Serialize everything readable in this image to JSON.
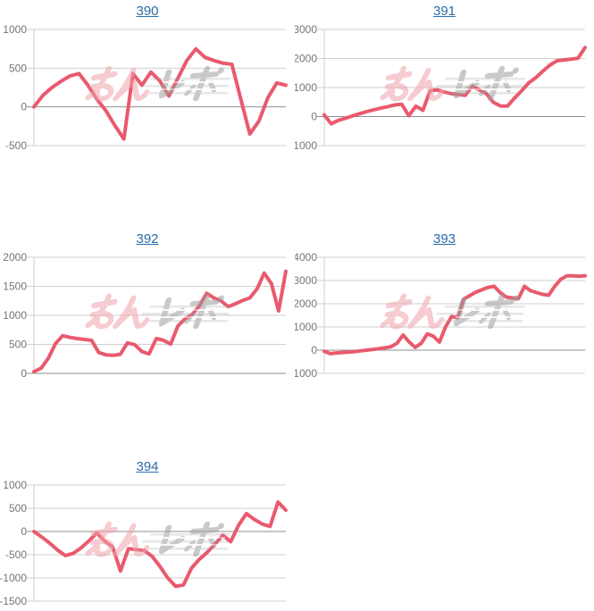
{
  "page": {
    "background": "#ffffff"
  },
  "watermark": {
    "text": "みんレポ",
    "pink_color": "#f0a4ad",
    "gray_color": "#9e9e9e"
  },
  "styles": {
    "line_color": "#e95a6e",
    "grid_color": "#cfcfcf",
    "zero_line_color": "#8f8f8f",
    "axis_label_color": "#757575",
    "title_color": "#2a6da8"
  },
  "chart_data": [
    {
      "type": "line",
      "title": "390",
      "xlabel": "",
      "ylabel": "",
      "ylim": [
        -500,
        1000
      ],
      "yticks": [
        1000,
        500,
        0,
        -500
      ],
      "grid": true,
      "legend": false,
      "values": [
        0,
        150,
        250,
        330,
        400,
        430,
        280,
        100,
        -50,
        -240,
        -415,
        430,
        280,
        450,
        335,
        140,
        370,
        600,
        750,
        640,
        600,
        565,
        550,
        100,
        -350,
        -185,
        120,
        310,
        280
      ]
    },
    {
      "type": "line",
      "title": "391",
      "xlabel": "",
      "ylabel": "",
      "ylim": [
        -1000,
        3000
      ],
      "yticks": [
        3000,
        2000,
        1000,
        0,
        -1000
      ],
      "grid": true,
      "legend": false,
      "values": [
        60,
        -250,
        -130,
        -60,
        20,
        100,
        170,
        230,
        290,
        340,
        400,
        420,
        30,
        360,
        215,
        890,
        920,
        850,
        790,
        760,
        730,
        1040,
        920,
        790,
        490,
        365,
        360,
        640,
        890,
        1160,
        1340,
        1560,
        1770,
        1920,
        1950,
        1980,
        2010,
        2380
      ]
    },
    {
      "type": "line",
      "title": "392",
      "xlabel": "",
      "ylabel": "",
      "ylim": [
        0,
        2000
      ],
      "yticks": [
        2000,
        1500,
        1000,
        500,
        0
      ],
      "grid": true,
      "legend": false,
      "values": [
        30,
        90,
        260,
        515,
        650,
        620,
        600,
        585,
        570,
        360,
        320,
        310,
        330,
        525,
        495,
        375,
        335,
        600,
        570,
        505,
        815,
        940,
        1015,
        1165,
        1380,
        1300,
        1250,
        1150,
        1200,
        1255,
        1300,
        1455,
        1727,
        1545,
        1076,
        1758
      ]
    },
    {
      "type": "line",
      "title": "393",
      "xlabel": "",
      "ylabel": "",
      "ylim": [
        -1000,
        4000
      ],
      "yticks": [
        4000,
        3000,
        2000,
        1000,
        0,
        -1000
      ],
      "grid": true,
      "legend": false,
      "values": [
        -50,
        -150,
        -120,
        -100,
        -80,
        -60,
        -30,
        0,
        30,
        60,
        100,
        150,
        300,
        650,
        350,
        120,
        300,
        700,
        600,
        350,
        1000,
        1450,
        1400,
        2200,
        2350,
        2500,
        2600,
        2700,
        2750,
        2480,
        2290,
        2250,
        2215,
        2750,
        2560,
        2480,
        2405,
        2365,
        2750,
        3050,
        3200,
        3200,
        3180,
        3200
      ]
    },
    {
      "type": "line",
      "title": "394",
      "xlabel": "",
      "ylabel": "",
      "ylim": [
        -1500,
        1000
      ],
      "yticks": [
        1000,
        500,
        0,
        -500,
        -1000,
        -1500
      ],
      "grid": true,
      "legend": false,
      "values": [
        0,
        -120,
        -250,
        -400,
        -520,
        -470,
        -350,
        -200,
        -30,
        -210,
        -330,
        -850,
        -370,
        -390,
        -410,
        -530,
        -750,
        -1000,
        -1180,
        -1150,
        -790,
        -600,
        -450,
        -270,
        -80,
        -220,
        135,
        385,
        260,
        160,
        110,
        635,
        460
      ]
    }
  ]
}
